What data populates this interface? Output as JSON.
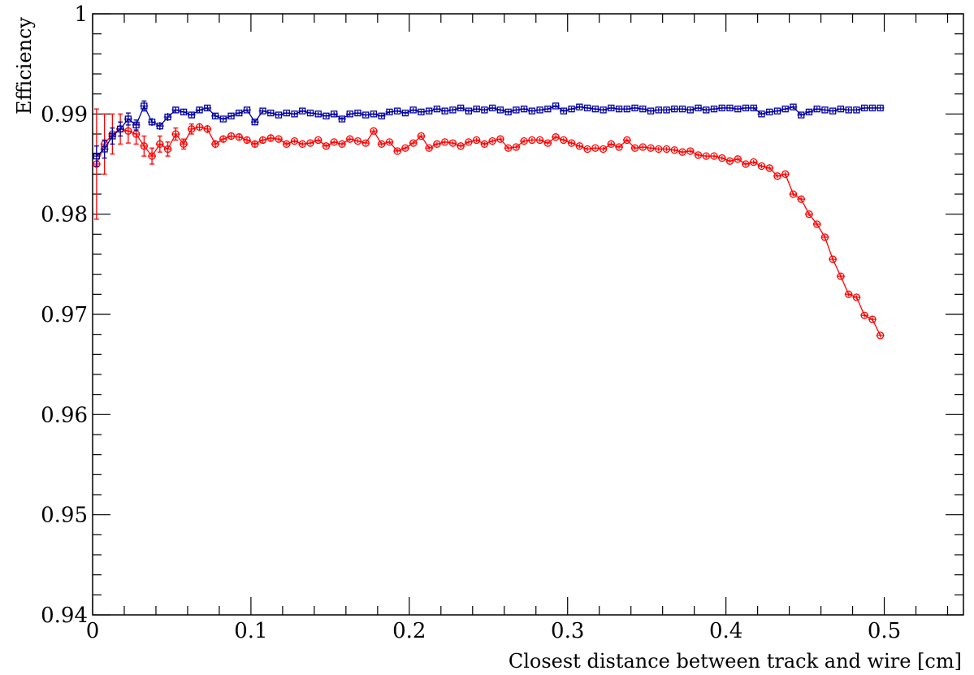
{
  "chart_data": {
    "type": "scatter",
    "title": "",
    "xlabel": "Closest distance between track and wire [cm]",
    "ylabel": "Efficiency",
    "xlim": [
      0,
      0.55
    ],
    "ylim": [
      0.94,
      1.0
    ],
    "x_ticks": [
      "0",
      "0.1",
      "0.2",
      "0.3",
      "0.4",
      "0.5"
    ],
    "y_ticks": [
      "0.94",
      "0.95",
      "0.96",
      "0.97",
      "0.98",
      "0.99",
      "1"
    ],
    "grid": false,
    "legend": "none",
    "series": [
      {
        "color": "#0000a0",
        "marker": "open-square",
        "x": [
          0.0025,
          0.0075,
          0.0125,
          0.0175,
          0.0225,
          0.0275,
          0.0325,
          0.0375,
          0.0425,
          0.0475,
          0.0525,
          0.0575,
          0.0625,
          0.0675,
          0.0725,
          0.0775,
          0.0825,
          0.0875,
          0.0925,
          0.0975,
          0.1025,
          0.1075,
          0.1125,
          0.1175,
          0.1225,
          0.1275,
          0.1325,
          0.1375,
          0.1425,
          0.1475,
          0.1525,
          0.1575,
          0.1625,
          0.1675,
          0.1725,
          0.1775,
          0.1825,
          0.1875,
          0.1925,
          0.1975,
          0.2025,
          0.2075,
          0.2125,
          0.2175,
          0.2225,
          0.2275,
          0.2325,
          0.2375,
          0.2425,
          0.2475,
          0.2525,
          0.2575,
          0.2625,
          0.2675,
          0.2725,
          0.2775,
          0.2825,
          0.2875,
          0.2925,
          0.2975,
          0.3025,
          0.3075,
          0.3125,
          0.3175,
          0.3225,
          0.3275,
          0.3325,
          0.3375,
          0.3425,
          0.3475,
          0.3525,
          0.3575,
          0.3625,
          0.3675,
          0.3725,
          0.3775,
          0.3825,
          0.3875,
          0.3925,
          0.3975,
          0.4025,
          0.4075,
          0.4125,
          0.4175,
          0.4225,
          0.4275,
          0.4325,
          0.4375,
          0.4425,
          0.4475,
          0.4525,
          0.4575,
          0.4625,
          0.4675,
          0.4725,
          0.4775,
          0.4825,
          0.4875,
          0.4925,
          0.4975
        ],
        "y": [
          0.9858,
          0.9865,
          0.9878,
          0.9885,
          0.9895,
          0.9889,
          0.9908,
          0.9892,
          0.9888,
          0.9897,
          0.9904,
          0.9902,
          0.9899,
          0.9904,
          0.9906,
          0.9898,
          0.9895,
          0.9898,
          0.9901,
          0.9904,
          0.9892,
          0.9903,
          0.9901,
          0.9899,
          0.9901,
          0.99,
          0.9903,
          0.9901,
          0.99,
          0.9898,
          0.99,
          0.9895,
          0.99,
          0.9901,
          0.9899,
          0.99,
          0.9898,
          0.9902,
          0.9903,
          0.9901,
          0.9904,
          0.9902,
          0.9903,
          0.9905,
          0.9903,
          0.9904,
          0.9906,
          0.9903,
          0.9905,
          0.9904,
          0.9906,
          0.9904,
          0.9902,
          0.9904,
          0.9905,
          0.9903,
          0.9904,
          0.9905,
          0.9908,
          0.9903,
          0.9905,
          0.9907,
          0.9906,
          0.9905,
          0.9904,
          0.9906,
          0.9905,
          0.9905,
          0.9906,
          0.9905,
          0.9903,
          0.9904,
          0.9904,
          0.9905,
          0.9905,
          0.9904,
          0.9906,
          0.9904,
          0.9905,
          0.9906,
          0.9906,
          0.9905,
          0.9906,
          0.9906,
          0.99,
          0.9902,
          0.9903,
          0.9905,
          0.9907,
          0.9899,
          0.9902,
          0.9905,
          0.9904,
          0.9903,
          0.9905,
          0.9904,
          0.9904,
          0.9906,
          0.9906,
          0.9906
        ],
        "yerr": [
          0.001,
          0.0009,
          0.0008,
          0.0007,
          0.0006,
          0.0005,
          0.0005,
          0.0004,
          0.0004,
          0.0004,
          0.0003,
          0.0003,
          0.0003,
          0.0003,
          0.0003,
          0.0003,
          0.0002,
          0.0002,
          0.0002,
          0.0002,
          0.0002,
          0.0002,
          0.0002,
          0.0002,
          0.0002,
          0.0002,
          0.0002,
          0.0002,
          0.0002,
          0.0002,
          0.0002,
          0.0002,
          0.0002,
          0.0002,
          0.0002,
          0.0002,
          0.0002,
          0.0002,
          0.0002,
          0.0002,
          0.0002,
          0.0002,
          0.0002,
          0.0002,
          0.0002,
          0.0002,
          0.0002,
          0.0002,
          0.0002,
          0.0002,
          0.0002,
          0.0002,
          0.0002,
          0.0002,
          0.0002,
          0.0002,
          0.0002,
          0.0002,
          0.0002,
          0.0002,
          0.0002,
          0.0002,
          0.0002,
          0.0002,
          0.0002,
          0.0002,
          0.0002,
          0.0002,
          0.0002,
          0.0002,
          0.0002,
          0.0002,
          0.0002,
          0.0002,
          0.0002,
          0.0002,
          0.0002,
          0.0002,
          0.0002,
          0.0002,
          0.0002,
          0.0002,
          0.0002,
          0.0002,
          0.0002,
          0.0002,
          0.0002,
          0.0002,
          0.0002,
          0.0002,
          0.0002,
          0.0002,
          0.0002,
          0.0002,
          0.0002,
          0.0002,
          0.0002,
          0.0002,
          0.0002,
          0.0002
        ]
      },
      {
        "color": "#ff0000",
        "marker": "open-circle",
        "x": [
          0.0025,
          0.0075,
          0.0125,
          0.0175,
          0.0225,
          0.0275,
          0.0325,
          0.0375,
          0.0425,
          0.0475,
          0.0525,
          0.0575,
          0.0625,
          0.0675,
          0.0725,
          0.0775,
          0.0825,
          0.0875,
          0.0925,
          0.0975,
          0.1025,
          0.1075,
          0.1125,
          0.1175,
          0.1225,
          0.1275,
          0.1325,
          0.1375,
          0.1425,
          0.1475,
          0.1525,
          0.1575,
          0.1625,
          0.1675,
          0.1725,
          0.1775,
          0.1825,
          0.1875,
          0.1925,
          0.1975,
          0.2025,
          0.2075,
          0.2125,
          0.2175,
          0.2225,
          0.2275,
          0.2325,
          0.2375,
          0.2425,
          0.2475,
          0.2525,
          0.2575,
          0.2625,
          0.2675,
          0.2725,
          0.2775,
          0.2825,
          0.2875,
          0.2925,
          0.2975,
          0.3025,
          0.3075,
          0.3125,
          0.3175,
          0.3225,
          0.3275,
          0.3325,
          0.3375,
          0.3425,
          0.3475,
          0.3525,
          0.3575,
          0.3625,
          0.3675,
          0.3725,
          0.3775,
          0.3825,
          0.3875,
          0.3925,
          0.3975,
          0.4025,
          0.4075,
          0.4125,
          0.4175,
          0.4225,
          0.4275,
          0.4325,
          0.4375,
          0.4425,
          0.4475,
          0.4525,
          0.4575,
          0.4625,
          0.4675,
          0.4725,
          0.4775,
          0.4825,
          0.4875,
          0.4925,
          0.4975
        ],
        "y": [
          0.985,
          0.987,
          0.988,
          0.9885,
          0.9883,
          0.988,
          0.9868,
          0.9858,
          0.987,
          0.9865,
          0.988,
          0.987,
          0.9885,
          0.9887,
          0.9885,
          0.987,
          0.9875,
          0.9878,
          0.9877,
          0.9874,
          0.987,
          0.9874,
          0.9876,
          0.9875,
          0.987,
          0.9873,
          0.987,
          0.9871,
          0.9874,
          0.9868,
          0.9872,
          0.987,
          0.9875,
          0.9873,
          0.9871,
          0.9883,
          0.987,
          0.9872,
          0.9863,
          0.9866,
          0.9871,
          0.9878,
          0.9866,
          0.987,
          0.9872,
          0.9871,
          0.9868,
          0.9872,
          0.9874,
          0.987,
          0.9873,
          0.9875,
          0.9866,
          0.9867,
          0.9873,
          0.9874,
          0.9874,
          0.9871,
          0.9877,
          0.9874,
          0.9871,
          0.9868,
          0.9865,
          0.9866,
          0.9865,
          0.987,
          0.9867,
          0.9874,
          0.9866,
          0.9867,
          0.9866,
          0.9865,
          0.9865,
          0.9864,
          0.9862,
          0.9863,
          0.9859,
          0.9858,
          0.9858,
          0.9856,
          0.9853,
          0.9855,
          0.985,
          0.9852,
          0.9848,
          0.9846,
          0.9838,
          0.984,
          0.982,
          0.9815,
          0.98,
          0.979,
          0.9777,
          0.9755,
          0.9738,
          0.972,
          0.9717,
          0.9699,
          0.9695,
          0.9679
        ],
        "yerr": [
          0.0055,
          0.003,
          0.002,
          0.0015,
          0.0012,
          0.001,
          0.001,
          0.0008,
          0.0008,
          0.0007,
          0.0006,
          0.0005,
          0.0005,
          0.0004,
          0.0004,
          0.0004,
          0.0003,
          0.0003,
          0.0003,
          0.0003,
          0.0003,
          0.0003,
          0.0003,
          0.0002,
          0.0002,
          0.0002,
          0.0002,
          0.0002,
          0.0002,
          0.0002,
          0.0002,
          0.0002,
          0.0002,
          0.0002,
          0.0002,
          0.0002,
          0.0002,
          0.0002,
          0.0002,
          0.0002,
          0.0002,
          0.0002,
          0.0002,
          0.0002,
          0.0002,
          0.0002,
          0.0002,
          0.0002,
          0.0002,
          0.0002,
          0.0002,
          0.0002,
          0.0002,
          0.0002,
          0.0002,
          0.0002,
          0.0002,
          0.0002,
          0.0002,
          0.0002,
          0.0002,
          0.0002,
          0.0002,
          0.0002,
          0.0002,
          0.0002,
          0.0002,
          0.0002,
          0.0002,
          0.0002,
          0.0002,
          0.0002,
          0.0002,
          0.0002,
          0.0002,
          0.0002,
          0.0002,
          0.0002,
          0.0002,
          0.0002,
          0.0002,
          0.0002,
          0.0002,
          0.0002,
          0.0002,
          0.0002,
          0.0002,
          0.0002,
          0.0002,
          0.0002,
          0.0002,
          0.0002,
          0.0002,
          0.0002,
          0.0002,
          0.0002,
          0.0002,
          0.0002,
          0.0002,
          0.0002
        ]
      }
    ]
  }
}
